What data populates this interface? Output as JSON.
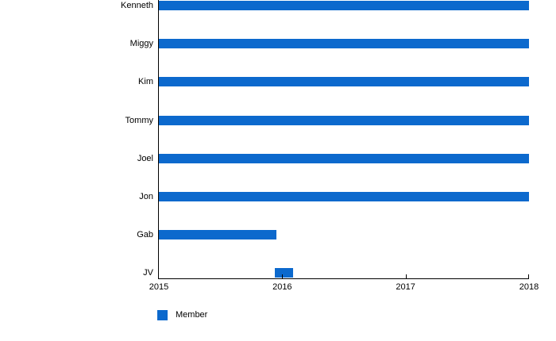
{
  "chart_data": {
    "type": "bar",
    "orientation": "horizontal",
    "categories": [
      "Kenneth",
      "Miggy",
      "Kim",
      "Tommy",
      "Joel",
      "Jon",
      "Gab",
      "JV"
    ],
    "series": [
      {
        "name": "Member",
        "color": "#0C69CD",
        "ranges": [
          {
            "label": "Kenneth",
            "start": 2015,
            "end": 2018
          },
          {
            "label": "Miggy",
            "start": 2015,
            "end": 2018
          },
          {
            "label": "Kim",
            "start": 2015,
            "end": 2018
          },
          {
            "label": "Tommy",
            "start": 2015,
            "end": 2018
          },
          {
            "label": "Joel",
            "start": 2015,
            "end": 2018
          },
          {
            "label": "Jon",
            "start": 2015,
            "end": 2018
          },
          {
            "label": "Gab",
            "start": 2015,
            "end": 2015.95
          },
          {
            "label": "JV",
            "start": 2015.94,
            "end": 2016.09
          }
        ]
      }
    ],
    "x_axis": {
      "min": 2015,
      "max": 2018,
      "tick_values": [
        2015,
        2016,
        2017,
        2018
      ],
      "ticks": [
        "2015",
        "2016",
        "2017",
        "2018"
      ]
    },
    "grid": false,
    "legend": {
      "position": "bottom-left",
      "items": [
        {
          "label": "Member",
          "color": "#0C69CD"
        }
      ]
    }
  }
}
